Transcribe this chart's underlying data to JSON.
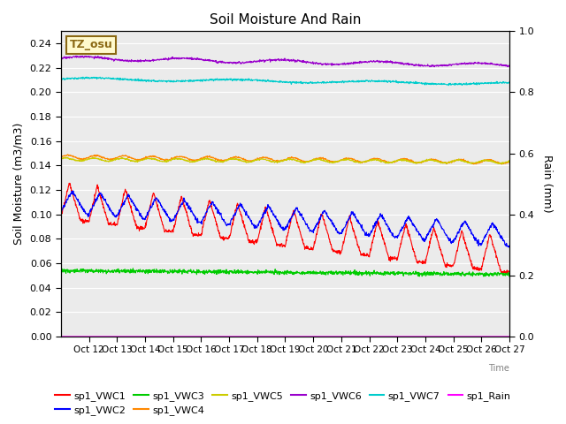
{
  "title": "Soil Moisture And Rain",
  "xlabel": "Time",
  "ylabel_left": "Soil Moisture (m3/m3)",
  "ylabel_right": "Rain (mm)",
  "annotation": "TZ_osu",
  "annotation_color": "#8B6914",
  "annotation_bg": "#FFFACD",
  "n_points": 1500,
  "ylim_left": [
    0.0,
    0.25
  ],
  "ylim_right": [
    0.0,
    1.0
  ],
  "colors": {
    "VWC1": "#FF0000",
    "VWC2": "#0000FF",
    "VWC3": "#00CC00",
    "VWC4": "#FF8800",
    "VWC5": "#CCCC00",
    "VWC6": "#9900CC",
    "VWC7": "#00CCCC",
    "Rain": "#FF00FF"
  },
  "legend_labels": [
    "sp1_VWC1",
    "sp1_VWC2",
    "sp1_VWC3",
    "sp1_VWC4",
    "sp1_VWC5",
    "sp1_VWC6",
    "sp1_VWC7",
    "sp1_Rain"
  ],
  "bg_color": "#EBEBEB",
  "tick_labels": [
    "Oct 12",
    "Oct 13",
    "Oct 14",
    "Oct 15",
    "Oct 16",
    "Oct 17",
    "Oct 18",
    "Oct 19",
    "Oct 20",
    "Oct 21",
    "Oct 22",
    "Oct 23",
    "Oct 24",
    "Oct 25",
    "Oct 26",
    "Oct 27"
  ]
}
